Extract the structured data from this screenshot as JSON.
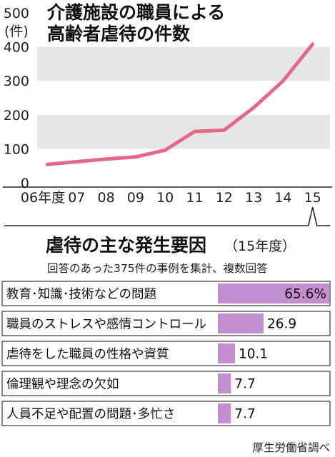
{
  "chart_data": [
    {
      "type": "line",
      "title": "介護施設の職員による\n高齢者虐待の件数",
      "ylabel": "(件)",
      "ylim": [
        0,
        500
      ],
      "yticks": [
        "0",
        "100",
        "200",
        "300",
        "400",
        "500"
      ],
      "categories": [
        "06年度",
        "07",
        "08",
        "09",
        "10",
        "11",
        "12",
        "13",
        "14",
        "15"
      ],
      "values": [
        54,
        62,
        70,
        76,
        96,
        151,
        155,
        221,
        300,
        408
      ],
      "grid": "alternating horizontal bands",
      "colors": {
        "line": "#e36a86",
        "band": "#e6e6e6"
      }
    },
    {
      "type": "bar",
      "orientation": "horizontal",
      "title": "虐待の主な発生要因",
      "title_suffix": "（15年度）",
      "subtitle": "回答のあった375件の事例を集計、複数回答",
      "categories": [
        "教育･知識･技術などの問題",
        "職員のストレスや感情コントロール",
        "虐待をした職員の性格や資質",
        "倫理観や理念の欠如",
        "人員不足や配置の問題･多忙さ"
      ],
      "values": [
        65.6,
        26.9,
        10.1,
        7.7,
        7.7
      ],
      "value_labels": [
        "65.6%",
        "26.9",
        "10.1",
        "7.7",
        "7.7"
      ],
      "colors": {
        "bar": "#c58fcf"
      }
    }
  ],
  "source": "厚生労働省調べ"
}
